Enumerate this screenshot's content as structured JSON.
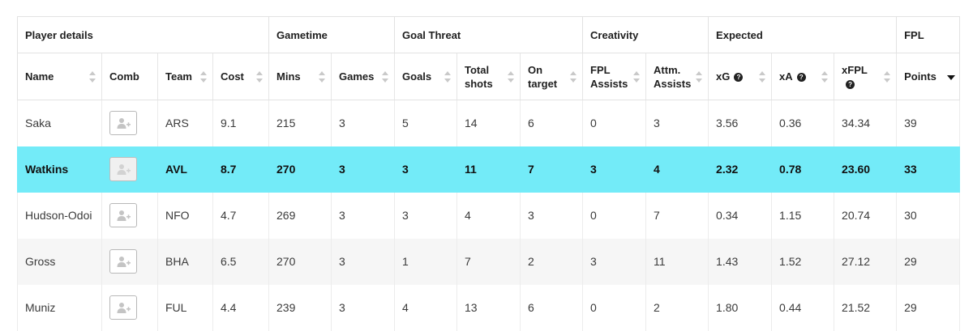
{
  "groups": {
    "player_details": "Player details",
    "gametime": "Gametime",
    "goal_threat": "Goal Threat",
    "creativity": "Creativity",
    "expected": "Expected",
    "fpl": "FPL"
  },
  "columns": {
    "name": "Name",
    "comb": "Comb",
    "team": "Team",
    "cost": "Cost",
    "mins": "Mins",
    "games": "Games",
    "goals": "Goals",
    "total_shots_1": "Total",
    "total_shots_2": "shots",
    "on_target_1": "On",
    "on_target_2": "target",
    "fpl_assists_1": "FPL",
    "fpl_assists_2": "Assists",
    "attm_assists_1": "Attm.",
    "attm_assists_2": "Assists",
    "xg": "xG",
    "xa": "xA",
    "xfpl": "xFPL",
    "points": "Points"
  },
  "help_glyph": "?",
  "icons": {
    "sort": "sort-icon",
    "add_player": "add-player-icon",
    "help": "help-icon"
  },
  "colors": {
    "highlight_row": "#73ebf8"
  },
  "rows": [
    {
      "name": "Saka",
      "team": "ARS",
      "cost": "9.1",
      "mins": "215",
      "games": "3",
      "goals": "5",
      "total_shots": "14",
      "on_target": "6",
      "fpl_assists": "0",
      "attm_assists": "3",
      "xg": "3.56",
      "xa": "0.36",
      "xfpl": "34.34",
      "points": "39"
    },
    {
      "name": "Watkins",
      "team": "AVL",
      "cost": "8.7",
      "mins": "270",
      "games": "3",
      "goals": "3",
      "total_shots": "11",
      "on_target": "7",
      "fpl_assists": "3",
      "attm_assists": "4",
      "xg": "2.32",
      "xa": "0.78",
      "xfpl": "23.60",
      "points": "33"
    },
    {
      "name": "Hudson-Odoi",
      "team": "NFO",
      "cost": "4.7",
      "mins": "269",
      "games": "3",
      "goals": "3",
      "total_shots": "4",
      "on_target": "3",
      "fpl_assists": "0",
      "attm_assists": "7",
      "xg": "0.34",
      "xa": "1.15",
      "xfpl": "20.74",
      "points": "30"
    },
    {
      "name": "Gross",
      "team": "BHA",
      "cost": "6.5",
      "mins": "270",
      "games": "3",
      "goals": "1",
      "total_shots": "7",
      "on_target": "2",
      "fpl_assists": "3",
      "attm_assists": "11",
      "xg": "1.43",
      "xa": "1.52",
      "xfpl": "27.12",
      "points": "29"
    },
    {
      "name": "Muniz",
      "team": "FUL",
      "cost": "4.4",
      "mins": "239",
      "games": "3",
      "goals": "4",
      "total_shots": "13",
      "on_target": "6",
      "fpl_assists": "0",
      "attm_assists": "2",
      "xg": "1.80",
      "xa": "0.44",
      "xfpl": "21.52",
      "points": "29"
    }
  ]
}
